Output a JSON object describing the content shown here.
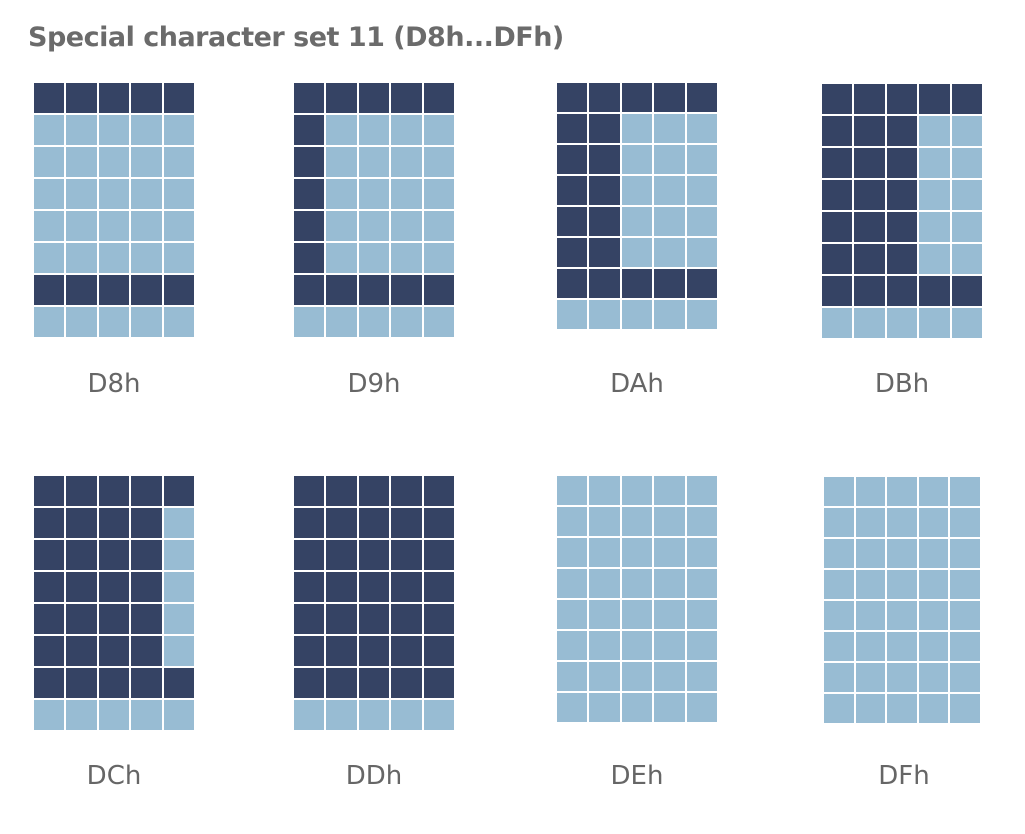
{
  "title": "Special character set 11 (D8h...DFh)",
  "colors": {
    "pixel_on": "#354364",
    "pixel_off": "#98bcd3",
    "grid_line": "#ffffff",
    "text": "#666666"
  },
  "characters": [
    {
      "label": "D8h",
      "rows": [
        "11111",
        "00000",
        "00000",
        "00000",
        "00000",
        "00000",
        "11111",
        "00000"
      ]
    },
    {
      "label": "D9h",
      "rows": [
        "11111",
        "10000",
        "10000",
        "10000",
        "10000",
        "10000",
        "11111",
        "00000"
      ]
    },
    {
      "label": "DAh",
      "rows": [
        "11111",
        "11000",
        "11000",
        "11000",
        "11000",
        "11000",
        "11111",
        "00000"
      ]
    },
    {
      "label": "DBh",
      "rows": [
        "11111",
        "11100",
        "11100",
        "11100",
        "11100",
        "11100",
        "11111",
        "00000"
      ]
    },
    {
      "label": "DCh",
      "rows": [
        "11111",
        "11110",
        "11110",
        "11110",
        "11110",
        "11110",
        "11111",
        "00000"
      ]
    },
    {
      "label": "DDh",
      "rows": [
        "11111",
        "11111",
        "11111",
        "11111",
        "11111",
        "11111",
        "11111",
        "00000"
      ]
    },
    {
      "label": "DEh",
      "rows": [
        "00000",
        "00000",
        "00000",
        "00000",
        "00000",
        "00000",
        "00000",
        "00000"
      ]
    },
    {
      "label": "DFh",
      "rows": [
        "00000",
        "00000",
        "00000",
        "00000",
        "00000",
        "00000",
        "00000",
        "00000"
      ]
    }
  ]
}
